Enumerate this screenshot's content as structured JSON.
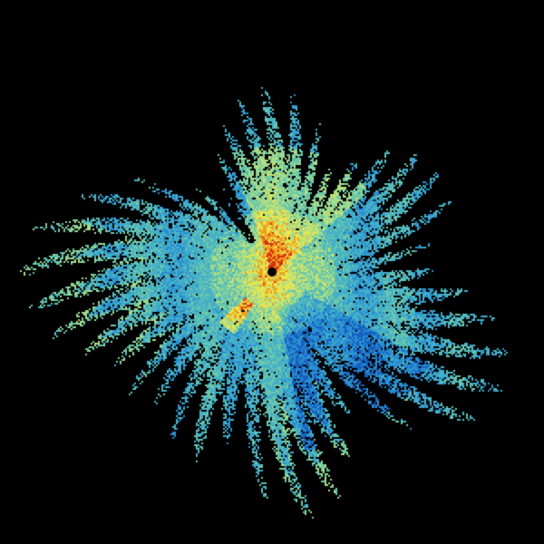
{
  "image": {
    "kind": "radar-reflectivity-sweep",
    "background": "#000000",
    "palette": [
      "#1560c0",
      "#2a8fd0",
      "#45b0c8",
      "#6cc8a8",
      "#a8dc88",
      "#e6e650",
      "#f0a020",
      "#d83010"
    ],
    "center_marker_color": "#000000"
  }
}
